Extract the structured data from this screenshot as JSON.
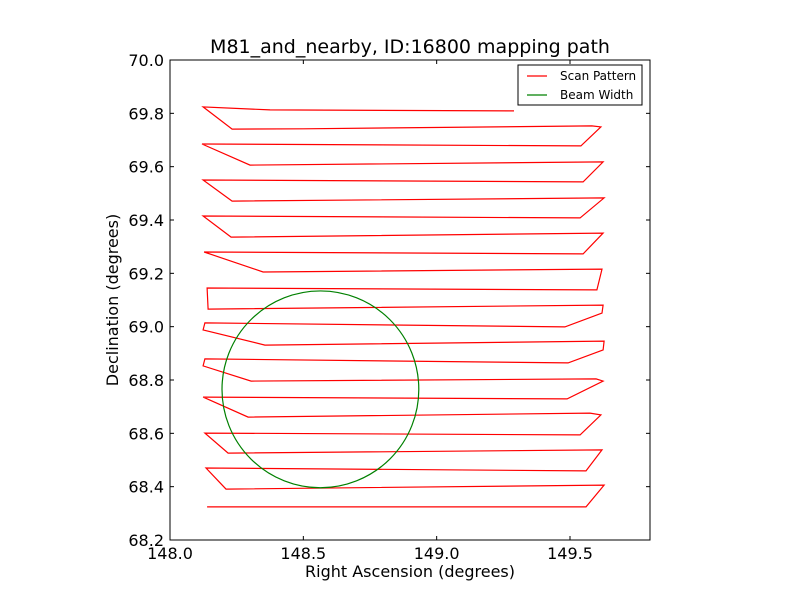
{
  "chart_data": {
    "type": "line",
    "title": "M81_and_nearby, ID:16800 mapping path",
    "xlabel": "Right Ascension (degrees)",
    "ylabel": "Declination (degrees)",
    "xlim": [
      148.0,
      149.8
    ],
    "ylim": [
      68.2,
      70.0
    ],
    "xticks": [
      148.0,
      148.5,
      149.0,
      149.5
    ],
    "xtick_labels": [
      "148.0",
      "148.5",
      "149.0",
      "149.5"
    ],
    "yticks": [
      68.2,
      68.4,
      68.6,
      68.8,
      69.0,
      69.2,
      69.4,
      69.6,
      69.8,
      70.0
    ],
    "ytick_labels": [
      "68.2",
      "68.4",
      "68.6",
      "68.8",
      "69.0",
      "69.2",
      "69.4",
      "69.6",
      "69.8",
      "70.0"
    ],
    "grid": false,
    "legend_position": "top-right",
    "legend": [
      {
        "label": "Scan Pattern",
        "color": "#ff0000"
      },
      {
        "label": "Beam Width",
        "color": "#008000"
      }
    ],
    "series": [
      {
        "name": "Scan Pattern",
        "color": "#ff0000",
        "x": [
          149.29,
          148.375,
          148.124,
          148.233,
          148.5,
          149.582,
          149.616,
          149.541,
          148.12,
          148.3,
          149.624,
          149.549,
          148.124,
          148.233,
          149.628,
          149.538,
          148.124,
          148.229,
          149.624,
          149.549,
          148.128,
          148.349,
          149.62,
          149.601,
          148.139,
          148.143,
          149.624,
          149.62,
          149.481,
          148.131,
          148.124,
          148.356,
          149.628,
          149.624,
          149.493,
          148.131,
          148.124,
          148.304,
          149.598,
          149.624,
          149.489,
          148.124,
          148.293,
          149.575,
          149.616,
          149.538,
          148.131,
          148.218,
          149.62,
          149.56,
          148.135,
          148.21,
          149.628,
          149.56,
          148.139
        ],
        "y": [
          69.809,
          69.813,
          69.824,
          69.741,
          69.742,
          69.753,
          69.749,
          69.678,
          69.685,
          69.606,
          69.618,
          69.543,
          69.55,
          69.471,
          69.483,
          69.408,
          69.415,
          69.336,
          69.351,
          69.273,
          69.28,
          69.205,
          69.216,
          69.138,
          69.145,
          69.066,
          69.081,
          69.051,
          68.999,
          69.014,
          68.988,
          68.931,
          68.946,
          68.913,
          68.864,
          68.879,
          68.853,
          68.796,
          68.804,
          68.796,
          68.729,
          68.736,
          68.661,
          68.676,
          68.669,
          68.594,
          68.601,
          68.526,
          68.538,
          68.459,
          68.47,
          68.391,
          68.406,
          68.324,
          68.324
        ]
      },
      {
        "name": "Beam Width",
        "color": "#008000",
        "shape": "circle",
        "center": [
          148.564,
          68.765
        ],
        "radius_deg": 0.369
      }
    ]
  }
}
